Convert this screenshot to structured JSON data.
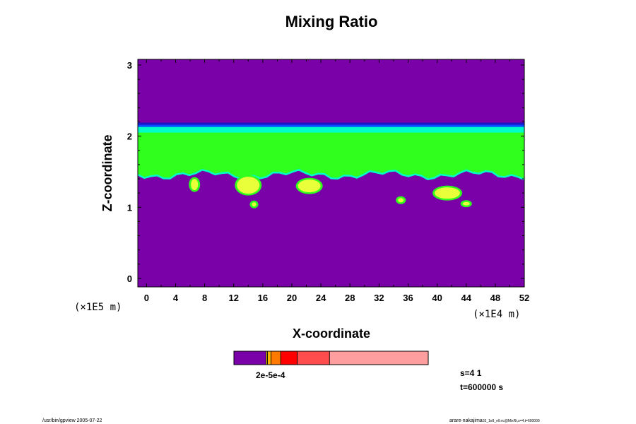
{
  "chart_data": {
    "type": "heatmap",
    "title": "Mixing Ratio",
    "xlabel": "X-coordinate",
    "ylabel": "Z-coordinate",
    "x_scale_label": "(×1E4 m)",
    "y_scale_label": "(×1E5 m)",
    "xlim": [
      -1.2,
      52
    ],
    "ylim": [
      -0.12,
      3.08
    ],
    "x_ticks": [
      0,
      4,
      8,
      12,
      16,
      20,
      24,
      28,
      32,
      36,
      40,
      44,
      48,
      52
    ],
    "y_ticks": [
      0,
      1,
      2,
      3
    ],
    "layers": [
      {
        "name": "background",
        "color": "#7a00a8",
        "z_range": [
          -0.12,
          3.08
        ]
      },
      {
        "name": "upper-boundary-blue",
        "color": "#0a4aff",
        "z_range": [
          2.1,
          2.18
        ]
      },
      {
        "name": "cyan-band",
        "color": "#00ffc8",
        "z_range": [
          2.02,
          2.13
        ]
      },
      {
        "name": "green-cloud-layer",
        "color": "#30ff1e",
        "z_range": [
          1.4,
          2.05
        ]
      }
    ],
    "patches": [
      {
        "x": 14,
        "z": 1.31,
        "color": "#e8ff3a"
      },
      {
        "x": 22.4,
        "z": 1.3,
        "color": "#e8ff3a"
      },
      {
        "x": 6.6,
        "z": 1.32,
        "color": "#e8ff3a"
      },
      {
        "x": 41.4,
        "z": 1.2,
        "color": "#e8ff3a"
      },
      {
        "x": 35,
        "z": 1.1,
        "color": "#e8ff3a"
      },
      {
        "x": 44,
        "z": 1.05,
        "color": "#e8ff3a"
      },
      {
        "x": 14.8,
        "z": 1.04,
        "color": "#e8ff3a"
      }
    ],
    "colorbar": {
      "label": "2e-5e-4",
      "segments": [
        {
          "color": "#7a00a8",
          "frac": 0.166
        },
        {
          "color": "#ffe600",
          "frac": 0.007
        },
        {
          "color": "#ffb000",
          "frac": 0.018
        },
        {
          "color": "#ff7a00",
          "frac": 0.05
        },
        {
          "color": "#ff0000",
          "frac": 0.085
        },
        {
          "color": "#ff4d4d",
          "frac": 0.166
        },
        {
          "color": "#ff9e9e",
          "frac": 0.508
        }
      ]
    }
  },
  "info": {
    "slice": "s=4 1",
    "time": "t=600000 s"
  },
  "footer": {
    "left": "/usr/bin/gpview 2005-07-22",
    "right_main": "arare-nakajima",
    "right_small": "03_1e8_ell.nc@MixRt,s=4,t=600000"
  }
}
